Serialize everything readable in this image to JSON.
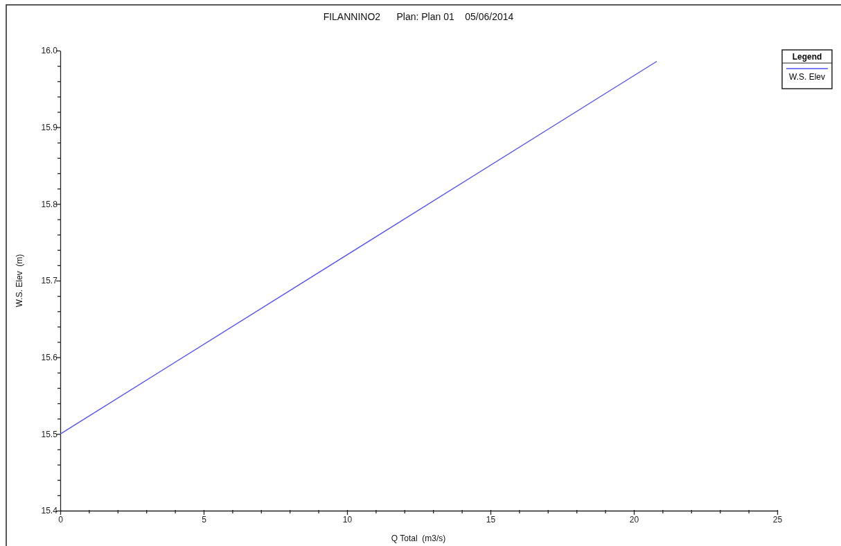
{
  "chart_data": {
    "type": "line",
    "title": "FILANNINO2      Plan: Plan 01    05/06/2014",
    "xlabel": "Q Total  (m3/s)",
    "ylabel": "W.S. Elev  (m)",
    "legend_title": "Legend",
    "x": [
      0,
      20.8
    ],
    "series": [
      {
        "name": "W.S. Elev",
        "color": "#4f4fff",
        "values": [
          15.5,
          15.986
        ]
      }
    ],
    "xlim": [
      0,
      25
    ],
    "ylim": [
      15.4,
      16.0
    ],
    "xticks": [
      0,
      {
        "value": 1,
        "label": null
      },
      {
        "value": 2,
        "label": null
      },
      {
        "value": 3,
        "label": null
      },
      {
        "value": 4,
        "label": null
      },
      5,
      {
        "value": 6,
        "label": null
      },
      {
        "value": 7,
        "label": null
      },
      {
        "value": 8,
        "label": null
      },
      {
        "value": 9,
        "label": null
      },
      10,
      {
        "value": 11,
        "label": null
      },
      {
        "value": 12,
        "label": null
      },
      {
        "value": 13,
        "label": null
      },
      {
        "value": 14,
        "label": null
      },
      15,
      {
        "value": 16,
        "label": null
      },
      {
        "value": 17,
        "label": null
      },
      {
        "value": 18,
        "label": null
      },
      {
        "value": 19,
        "label": null
      },
      20,
      {
        "value": 21,
        "label": null
      },
      {
        "value": 22,
        "label": null
      },
      {
        "value": 23,
        "label": null
      },
      {
        "value": 24,
        "label": null
      },
      25
    ],
    "yticks": [
      15.4,
      {
        "value": 15.42,
        "label": null
      },
      {
        "value": 15.44,
        "label": null
      },
      {
        "value": 15.46,
        "label": null
      },
      {
        "value": 15.48,
        "label": null
      },
      15.5,
      {
        "value": 15.52,
        "label": null
      },
      {
        "value": 15.54,
        "label": null
      },
      {
        "value": 15.56,
        "label": null
      },
      {
        "value": 15.58,
        "label": null
      },
      15.6,
      {
        "value": 15.62,
        "label": null
      },
      {
        "value": 15.64,
        "label": null
      },
      {
        "value": 15.66,
        "label": null
      },
      {
        "value": 15.68,
        "label": null
      },
      15.7,
      {
        "value": 15.72,
        "label": null
      },
      {
        "value": 15.74,
        "label": null
      },
      {
        "value": 15.76,
        "label": null
      },
      {
        "value": 15.78,
        "label": null
      },
      15.8,
      {
        "value": 15.82,
        "label": null
      },
      {
        "value": 15.84,
        "label": null
      },
      {
        "value": 15.86,
        "label": null
      },
      {
        "value": 15.88,
        "label": null
      },
      15.9,
      {
        "value": 15.92,
        "label": null
      },
      {
        "value": 15.94,
        "label": null
      },
      {
        "value": 15.96,
        "label": null
      },
      {
        "value": 15.98,
        "label": null
      },
      {
        "value": 16.0,
        "label": "16.0"
      }
    ],
    "grid": false,
    "legend": "top right",
    "marker": "none",
    "line_style": "solid"
  }
}
